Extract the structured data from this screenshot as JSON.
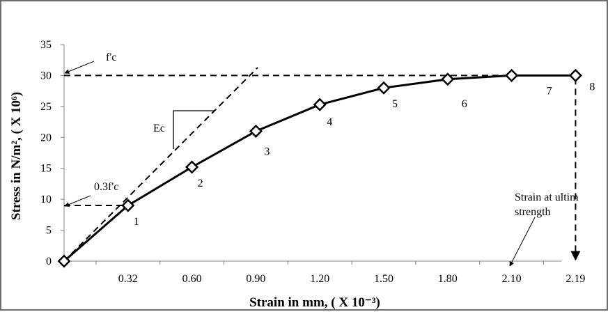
{
  "chart_data": {
    "type": "line",
    "x_tick_labels": [
      "0.32",
      "0.60",
      "0.90",
      "1.20",
      "1.50",
      "1.80",
      "2.10",
      "2.19"
    ],
    "ylim": [
      0,
      35
    ],
    "y_ticks": [
      0,
      5,
      10,
      15,
      20,
      25,
      30,
      35
    ],
    "grid": false,
    "xlabel": "Strain in mm, ( X 10⁻³)",
    "ylabel": "Stress in N/m², ( X 10⁶)",
    "series": [
      {
        "x": [
          "0",
          "0.32",
          "0.60",
          "0.90",
          "1.20",
          "1.50",
          "1.80",
          "2.10",
          "2.19"
        ],
        "y": [
          0,
          9,
          15.2,
          21,
          25.3,
          28,
          29.4,
          30,
          30
        ],
        "point_labels": [
          "",
          "1",
          "2",
          "3",
          "4",
          "5",
          "6",
          "7",
          "8"
        ]
      }
    ],
    "annotations": {
      "fc": "f'c",
      "fc03": "0.3f'c",
      "ec": "Ec",
      "ultimate_line1": "Strain at ultim",
      "ultimate_line2": "strength"
    }
  }
}
